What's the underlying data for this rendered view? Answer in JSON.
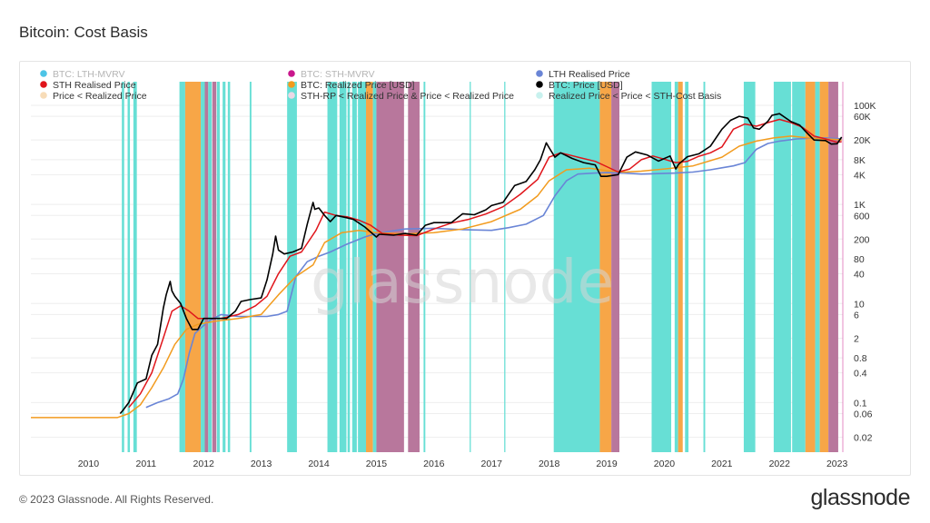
{
  "page_title": "Bitcoin: Cost Basis",
  "watermark": "glassnode",
  "footer": {
    "copyright": "© 2023 Glassnode. All Rights Reserved.",
    "brand": "glassnode"
  },
  "colors": {
    "lth_mvrv": "#4dc4e6",
    "sth_mvrv": "#c9178c",
    "lth_realised_price": "#6a85d6",
    "sth_realised_price": "#e0151b",
    "realized_price": "#f29b1e",
    "price": "#000000",
    "band_price_lt_realized": "#f7a647",
    "band_sth_rp_lt_rp": "#b8779c",
    "band_rp_lt_price_lt_sth": "#67dfd5"
  },
  "chart_data": {
    "type": "line",
    "title": "Bitcoin: Cost Basis",
    "y_scale": "log",
    "ylim": [
      0.01,
      300000
    ],
    "xlim": [
      2009.0,
      2023.1
    ],
    "grid": true,
    "legend_position": "top",
    "x_ticks": [
      "2010",
      "2011",
      "2012",
      "2013",
      "2014",
      "2015",
      "2016",
      "2017",
      "2018",
      "2019",
      "2020",
      "2021",
      "2022",
      "2023"
    ],
    "y_ticks": [
      {
        "v": 100000,
        "label": "100K"
      },
      {
        "v": 60000,
        "label": "60K"
      },
      {
        "v": 20000,
        "label": "20K"
      },
      {
        "v": 8000,
        "label": "8K"
      },
      {
        "v": 4000,
        "label": "4K"
      },
      {
        "v": 1000,
        "label": "1K"
      },
      {
        "v": 600,
        "label": "600"
      },
      {
        "v": 200,
        "label": "200"
      },
      {
        "v": 80,
        "label": "80"
      },
      {
        "v": 40,
        "label": "40"
      },
      {
        "v": 10,
        "label": "10"
      },
      {
        "v": 6,
        "label": "6"
      },
      {
        "v": 2,
        "label": "2"
      },
      {
        "v": 0.8,
        "label": "0.8"
      },
      {
        "v": 0.4,
        "label": "0.4"
      },
      {
        "v": 0.1,
        "label": "0.1"
      },
      {
        "v": 0.06,
        "label": "0.06"
      },
      {
        "v": 0.02,
        "label": "0.02"
      }
    ],
    "legend": [
      {
        "name": "BTC: LTH-MVRV",
        "color": "#4dc4e6",
        "muted": true
      },
      {
        "name": "BTC: STH-MVRV",
        "color": "#c9178c",
        "muted": true
      },
      {
        "name": "LTH Realised Price",
        "color": "#6a85d6"
      },
      {
        "name": "STH Realised Price",
        "color": "#e0151b"
      },
      {
        "name": "BTC: Realized Price [USD]",
        "color": "#f29b1e"
      },
      {
        "name": "BTC: Price [USD]",
        "color": "#000000"
      },
      {
        "name": "Price < Realized Price",
        "color": "#f7dcb8"
      },
      {
        "name": "STH-RP < Realized Price & Price < Realized Price",
        "color": "#ead8e5"
      },
      {
        "name": "Realized Price < Price < STH-Cost Basis",
        "color": "#c8f1ee"
      }
    ],
    "bands": [
      {
        "kind": "teal",
        "x0": 2010.58,
        "x1": 2010.62
      },
      {
        "kind": "teal",
        "x0": 2010.68,
        "x1": 2010.72
      },
      {
        "kind": "teal",
        "x0": 2010.78,
        "x1": 2010.84
      },
      {
        "kind": "teal",
        "x0": 2011.58,
        "x1": 2011.68
      },
      {
        "kind": "orange",
        "x0": 2011.68,
        "x1": 2011.95
      },
      {
        "kind": "teal",
        "x0": 2011.95,
        "x1": 2012.02
      },
      {
        "kind": "purple",
        "x0": 2012.02,
        "x1": 2012.08
      },
      {
        "kind": "teal",
        "x0": 2012.08,
        "x1": 2012.14
      },
      {
        "kind": "purple",
        "x0": 2012.15,
        "x1": 2012.22
      },
      {
        "kind": "teal",
        "x0": 2012.23,
        "x1": 2012.28
      },
      {
        "kind": "teal",
        "x0": 2012.33,
        "x1": 2012.38
      },
      {
        "kind": "teal",
        "x0": 2012.42,
        "x1": 2012.46
      },
      {
        "kind": "teal",
        "x0": 2012.8,
        "x1": 2012.83
      },
      {
        "kind": "teal",
        "x0": 2013.45,
        "x1": 2013.62
      },
      {
        "kind": "teal",
        "x0": 2014.15,
        "x1": 2014.32
      },
      {
        "kind": "teal",
        "x0": 2014.36,
        "x1": 2014.48
      },
      {
        "kind": "teal",
        "x0": 2014.5,
        "x1": 2014.54
      },
      {
        "kind": "teal",
        "x0": 2014.58,
        "x1": 2014.66
      },
      {
        "kind": "teal",
        "x0": 2014.68,
        "x1": 2014.82
      },
      {
        "kind": "orange",
        "x0": 2014.82,
        "x1": 2014.94
      },
      {
        "kind": "teal",
        "x0": 2014.94,
        "x1": 2015.0
      },
      {
        "kind": "purple",
        "x0": 2015.0,
        "x1": 2015.48
      },
      {
        "kind": "purple",
        "x0": 2015.55,
        "x1": 2015.75
      },
      {
        "kind": "teal",
        "x0": 2015.82,
        "x1": 2015.85
      },
      {
        "kind": "teal",
        "x0": 2016.62,
        "x1": 2016.64
      },
      {
        "kind": "teal",
        "x0": 2017.22,
        "x1": 2017.24
      },
      {
        "kind": "teal",
        "x0": 2018.08,
        "x1": 2018.88
      },
      {
        "kind": "orange",
        "x0": 2018.88,
        "x1": 2019.08
      },
      {
        "kind": "purple",
        "x0": 2019.08,
        "x1": 2019.22
      },
      {
        "kind": "teal",
        "x0": 2019.78,
        "x1": 2020.12
      },
      {
        "kind": "teal",
        "x0": 2020.18,
        "x1": 2020.24
      },
      {
        "kind": "orange",
        "x0": 2020.24,
        "x1": 2020.32
      },
      {
        "kind": "teal",
        "x0": 2020.36,
        "x1": 2020.42
      },
      {
        "kind": "teal",
        "x0": 2020.68,
        "x1": 2020.71
      },
      {
        "kind": "teal",
        "x0": 2021.38,
        "x1": 2021.58
      },
      {
        "kind": "teal",
        "x0": 2021.9,
        "x1": 2022.2
      },
      {
        "kind": "teal",
        "x0": 2022.22,
        "x1": 2022.45
      },
      {
        "kind": "orange",
        "x0": 2022.45,
        "x1": 2022.62
      },
      {
        "kind": "teal",
        "x0": 2022.62,
        "x1": 2022.7
      },
      {
        "kind": "orange",
        "x0": 2022.7,
        "x1": 2022.85
      },
      {
        "kind": "purple",
        "x0": 2022.85,
        "x1": 2023.02
      }
    ],
    "series": [
      {
        "name": "BTC: Price [USD]",
        "color": "#000000",
        "width": 1.6,
        "x": [
          2010.55,
          2010.6,
          2010.7,
          2010.85,
          2011.0,
          2011.1,
          2011.2,
          2011.3,
          2011.35,
          2011.42,
          2011.45,
          2011.5,
          2011.6,
          2011.7,
          2011.8,
          2011.9,
          2012.0,
          2012.2,
          2012.4,
          2012.55,
          2012.65,
          2012.8,
          2013.0,
          2013.1,
          2013.2,
          2013.25,
          2013.3,
          2013.4,
          2013.55,
          2013.7,
          2013.8,
          2013.9,
          2013.93,
          2014.0,
          2014.1,
          2014.2,
          2014.3,
          2014.45,
          2014.6,
          2014.8,
          2015.0,
          2015.05,
          2015.3,
          2015.5,
          2015.7,
          2015.85,
          2016.0,
          2016.3,
          2016.5,
          2016.7,
          2016.9,
          2017.0,
          2017.2,
          2017.4,
          2017.6,
          2017.75,
          2017.85,
          2017.95,
          2018.0,
          2018.1,
          2018.2,
          2018.4,
          2018.6,
          2018.8,
          2018.9,
          2019.0,
          2019.2,
          2019.35,
          2019.5,
          2019.7,
          2019.9,
          2020.1,
          2020.2,
          2020.25,
          2020.4,
          2020.6,
          2020.8,
          2021.0,
          2021.15,
          2021.3,
          2021.45,
          2021.55,
          2021.65,
          2021.8,
          2021.87,
          2022.0,
          2022.2,
          2022.35,
          2022.45,
          2022.6,
          2022.8,
          2022.9,
          2023.0,
          2023.08
        ],
        "values": [
          0.06,
          0.07,
          0.1,
          0.25,
          0.3,
          0.9,
          1.5,
          8,
          15,
          28,
          18,
          14,
          10,
          5,
          3,
          3,
          5,
          5,
          5,
          7,
          11,
          12,
          13,
          30,
          100,
          230,
          120,
          100,
          110,
          130,
          400,
          1100,
          800,
          850,
          600,
          450,
          600,
          550,
          500,
          350,
          220,
          250,
          240,
          260,
          240,
          380,
          430,
          430,
          650,
          620,
          780,
          950,
          1100,
          2400,
          2900,
          5000,
          8000,
          17500,
          14000,
          9000,
          11000,
          8500,
          7000,
          6300,
          3700,
          3700,
          4000,
          9000,
          11500,
          10000,
          7500,
          9500,
          5200,
          6500,
          9200,
          10500,
          15000,
          33000,
          50000,
          60000,
          55000,
          35000,
          33000,
          48000,
          63000,
          68000,
          47000,
          40000,
          30000,
          20000,
          19500,
          16500,
          16800,
          23000
        ]
      },
      {
        "name": "STH Realised Price",
        "color": "#e0151b",
        "width": 1.5,
        "x": [
          2010.7,
          2010.9,
          2011.1,
          2011.3,
          2011.45,
          2011.6,
          2011.75,
          2011.9,
          2012.1,
          2012.3,
          2012.6,
          2012.9,
          2013.1,
          2013.3,
          2013.5,
          2013.7,
          2013.95,
          2014.1,
          2014.3,
          2014.5,
          2014.7,
          2014.9,
          2015.1,
          2015.4,
          2015.7,
          2016.0,
          2016.3,
          2016.6,
          2016.9,
          2017.2,
          2017.5,
          2017.8,
          2018.0,
          2018.2,
          2018.5,
          2018.8,
          2019.0,
          2019.2,
          2019.4,
          2019.6,
          2019.8,
          2020.0,
          2020.2,
          2020.4,
          2020.6,
          2020.8,
          2021.0,
          2021.2,
          2021.4,
          2021.6,
          2021.8,
          2022.0,
          2022.2,
          2022.4,
          2022.6,
          2022.8,
          2023.0,
          2023.08
        ],
        "values": [
          0.08,
          0.15,
          0.4,
          2,
          7,
          9,
          7,
          5,
          5,
          5,
          6,
          9,
          14,
          40,
          90,
          110,
          300,
          700,
          600,
          560,
          480,
          380,
          260,
          240,
          235,
          320,
          420,
          500,
          640,
          900,
          1600,
          3200,
          9000,
          11000,
          9000,
          7400,
          5800,
          4500,
          5200,
          8000,
          9500,
          8200,
          7000,
          7400,
          9400,
          11000,
          14500,
          33000,
          42000,
          38000,
          45000,
          52000,
          45000,
          36000,
          24000,
          21000,
          18000,
          18500
        ]
      },
      {
        "name": "BTC: Realized Price [USD]",
        "color": "#f29b1e",
        "width": 1.5,
        "x": [
          2009.0,
          2010.5,
          2010.7,
          2010.9,
          2011.1,
          2011.3,
          2011.5,
          2011.7,
          2011.9,
          2012.2,
          2012.6,
          2013.0,
          2013.3,
          2013.6,
          2013.9,
          2014.1,
          2014.4,
          2014.7,
          2015.0,
          2015.5,
          2016.0,
          2016.5,
          2017.0,
          2017.5,
          2017.8,
          2018.0,
          2018.3,
          2018.7,
          2019.0,
          2019.3,
          2019.6,
          2020.0,
          2020.5,
          2021.0,
          2021.3,
          2021.6,
          2021.9,
          2022.2,
          2022.5,
          2022.8,
          2023.0,
          2023.08
        ],
        "values": [
          0.05,
          0.05,
          0.06,
          0.09,
          0.2,
          0.5,
          1.5,
          3,
          3.8,
          4.4,
          5,
          6,
          15,
          35,
          60,
          170,
          270,
          300,
          270,
          255,
          270,
          320,
          450,
          800,
          1500,
          3000,
          5000,
          5400,
          4800,
          4500,
          4700,
          5200,
          6000,
          9000,
          15000,
          19000,
          22000,
          24000,
          22000,
          21000,
          20500,
          20000
        ]
      },
      {
        "name": "LTH Realised Price",
        "color": "#6a85d6",
        "width": 1.6,
        "x": [
          2011.0,
          2011.2,
          2011.4,
          2011.55,
          2011.65,
          2011.75,
          2011.85,
          2011.95,
          2012.1,
          2012.3,
          2012.6,
          2012.9,
          2013.1,
          2013.3,
          2013.45,
          2013.5,
          2013.6,
          2013.8,
          2014.0,
          2014.2,
          2014.5,
          2014.8,
          2015.0,
          2015.5,
          2016.0,
          2016.5,
          2017.0,
          2017.3,
          2017.6,
          2017.9,
          2018.1,
          2018.3,
          2018.5,
          2018.8,
          2019.0,
          2019.3,
          2019.6,
          2019.9,
          2020.2,
          2020.5,
          2020.8,
          2021.0,
          2021.2,
          2021.4,
          2021.6,
          2021.8,
          2022.0,
          2022.3,
          2022.6,
          2022.8,
          2023.0,
          2023.08
        ],
        "values": [
          0.08,
          0.1,
          0.12,
          0.15,
          0.3,
          1,
          2.5,
          3.2,
          4.5,
          6,
          5.5,
          5.5,
          5.5,
          6,
          7,
          12,
          35,
          70,
          90,
          110,
          160,
          220,
          260,
          320,
          330,
          310,
          300,
          340,
          400,
          600,
          1500,
          3000,
          4100,
          4300,
          4400,
          4300,
          4100,
          4200,
          4300,
          4500,
          5000,
          5500,
          6000,
          7000,
          13000,
          17000,
          19000,
          21000,
          22000,
          22000,
          21500,
          21000
        ]
      }
    ]
  }
}
